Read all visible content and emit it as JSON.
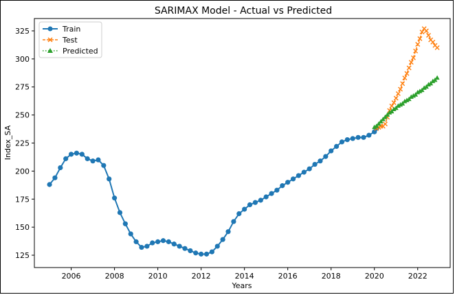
{
  "chart_data": {
    "type": "line",
    "title": "SARIMAX Model - Actual vs Predicted",
    "xlabel": "Years",
    "ylabel": "Index_SA",
    "xlim": [
      2004.3,
      2023.5
    ],
    "ylim": [
      114,
      336
    ],
    "x_ticks": [
      2006,
      2008,
      2010,
      2012,
      2014,
      2016,
      2018,
      2020,
      2022
    ],
    "y_ticks": [
      125,
      150,
      175,
      200,
      225,
      250,
      275,
      300,
      325
    ],
    "grid": false,
    "legend_position": "top-left",
    "colors": {
      "train": "#1f77b4",
      "test": "#ff7f0e",
      "predicted": "#2ca02c"
    },
    "series": [
      {
        "name": "Train",
        "style": "solid-circle",
        "color": "#1f77b4",
        "points": [
          [
            2005.0,
            188
          ],
          [
            2005.25,
            194
          ],
          [
            2005.5,
            203
          ],
          [
            2005.75,
            211
          ],
          [
            2006.0,
            215
          ],
          [
            2006.25,
            216
          ],
          [
            2006.5,
            215
          ],
          [
            2006.75,
            211
          ],
          [
            2007.0,
            209
          ],
          [
            2007.25,
            210
          ],
          [
            2007.5,
            205
          ],
          [
            2007.75,
            193
          ],
          [
            2008.0,
            176
          ],
          [
            2008.25,
            163
          ],
          [
            2008.5,
            153
          ],
          [
            2008.75,
            144
          ],
          [
            2009.0,
            137
          ],
          [
            2009.25,
            132
          ],
          [
            2009.5,
            133
          ],
          [
            2009.75,
            136
          ],
          [
            2010.0,
            137
          ],
          [
            2010.25,
            138
          ],
          [
            2010.5,
            137
          ],
          [
            2010.75,
            135
          ],
          [
            2011.0,
            133
          ],
          [
            2011.25,
            131
          ],
          [
            2011.5,
            129
          ],
          [
            2011.75,
            127
          ],
          [
            2012.0,
            126
          ],
          [
            2012.25,
            126
          ],
          [
            2012.5,
            128
          ],
          [
            2012.75,
            133
          ],
          [
            2013.0,
            139
          ],
          [
            2013.25,
            146
          ],
          [
            2013.5,
            155
          ],
          [
            2013.75,
            162
          ],
          [
            2014.0,
            166
          ],
          [
            2014.25,
            170
          ],
          [
            2014.5,
            172
          ],
          [
            2014.75,
            174
          ],
          [
            2015.0,
            177
          ],
          [
            2015.25,
            180
          ],
          [
            2015.5,
            183
          ],
          [
            2015.75,
            187
          ],
          [
            2016.0,
            190
          ],
          [
            2016.25,
            193
          ],
          [
            2016.5,
            196
          ],
          [
            2016.75,
            199
          ],
          [
            2017.0,
            202
          ],
          [
            2017.25,
            206
          ],
          [
            2017.5,
            209
          ],
          [
            2017.75,
            213
          ],
          [
            2018.0,
            218
          ],
          [
            2018.25,
            222
          ],
          [
            2018.5,
            226
          ],
          [
            2018.75,
            228
          ],
          [
            2019.0,
            229
          ],
          [
            2019.25,
            230
          ],
          [
            2019.5,
            230
          ],
          [
            2019.75,
            232
          ],
          [
            2020.0,
            235
          ],
          [
            2020.1,
            238
          ]
        ]
      },
      {
        "name": "Test",
        "style": "dashed-x",
        "color": "#ff7f0e",
        "points": [
          [
            2020.1,
            238
          ],
          [
            2020.2,
            239
          ],
          [
            2020.3,
            240
          ],
          [
            2020.4,
            240
          ],
          [
            2020.5,
            242
          ],
          [
            2020.6,
            248
          ],
          [
            2020.7,
            254
          ],
          [
            2020.8,
            258
          ],
          [
            2020.9,
            261
          ],
          [
            2021.0,
            265
          ],
          [
            2021.1,
            269
          ],
          [
            2021.2,
            273
          ],
          [
            2021.3,
            278
          ],
          [
            2021.4,
            283
          ],
          [
            2021.5,
            287
          ],
          [
            2021.6,
            292
          ],
          [
            2021.7,
            297
          ],
          [
            2021.8,
            301
          ],
          [
            2021.9,
            307
          ],
          [
            2022.0,
            313
          ],
          [
            2022.1,
            318
          ],
          [
            2022.2,
            324
          ],
          [
            2022.3,
            327
          ],
          [
            2022.4,
            325
          ],
          [
            2022.5,
            321
          ],
          [
            2022.6,
            317
          ],
          [
            2022.7,
            315
          ],
          [
            2022.8,
            312
          ],
          [
            2022.9,
            310
          ]
        ]
      },
      {
        "name": "Predicted",
        "style": "dotted-triangle",
        "color": "#2ca02c",
        "points": [
          [
            2020.0,
            239
          ],
          [
            2020.1,
            240
          ],
          [
            2020.2,
            242
          ],
          [
            2020.3,
            244
          ],
          [
            2020.4,
            246
          ],
          [
            2020.5,
            248
          ],
          [
            2020.6,
            250
          ],
          [
            2020.7,
            252
          ],
          [
            2020.8,
            253
          ],
          [
            2020.9,
            255
          ],
          [
            2021.0,
            256
          ],
          [
            2021.1,
            258
          ],
          [
            2021.2,
            259
          ],
          [
            2021.3,
            260
          ],
          [
            2021.4,
            262
          ],
          [
            2021.5,
            263
          ],
          [
            2021.6,
            264
          ],
          [
            2021.7,
            266
          ],
          [
            2021.8,
            267
          ],
          [
            2021.9,
            268
          ],
          [
            2022.0,
            270
          ],
          [
            2022.1,
            271
          ],
          [
            2022.2,
            272
          ],
          [
            2022.3,
            274
          ],
          [
            2022.4,
            275
          ],
          [
            2022.5,
            277
          ],
          [
            2022.6,
            278
          ],
          [
            2022.7,
            280
          ],
          [
            2022.8,
            281
          ],
          [
            2022.9,
            283
          ]
        ]
      }
    ]
  }
}
